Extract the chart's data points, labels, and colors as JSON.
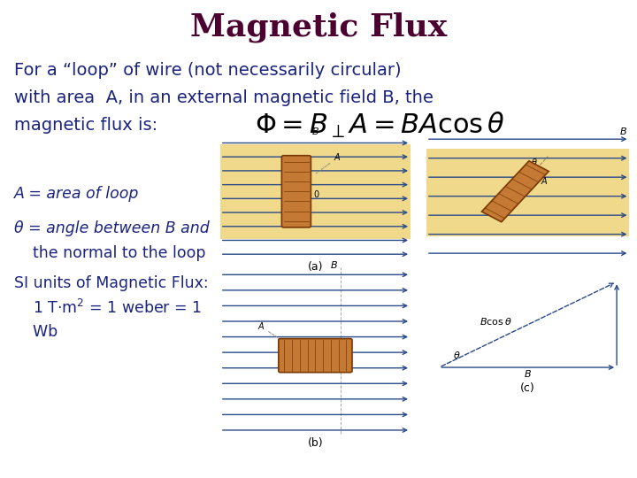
{
  "title": "Magnetic Flux",
  "title_color": "#4B0030",
  "title_fontsize": 26,
  "title_fontweight": "bold",
  "bg_color": "#ffffff",
  "body_text_color": "#1a237e",
  "body_fontsize": 14,
  "label_fontsize": 12.5,
  "small_fontsize": 8,
  "intro_line1": "For a “loop” of wire (not necessarily circular)",
  "intro_line2": "with area  A, in an external magnetic field B, the",
  "intro_line3": "magnetic flux is:",
  "formula": "$\\Phi = B_{\\perp}A = BA\\cos\\theta$",
  "formula_fontsize": 22,
  "bullet1": "A = area of loop",
  "bullet2a": "θ = angle between B and",
  "bullet2b": "  the normal to the loop",
  "bullet3a": "SI units of Magnetic Flux:",
  "bullet3b": "  1 T·m$^2$ = 1 weber = 1",
  "bullet3c": "  Wb",
  "fig_highlight": "#f0d98a",
  "line_color": "#2a4a8a",
  "coil_color": "#c47a35",
  "coil_edge": "#7a3800"
}
